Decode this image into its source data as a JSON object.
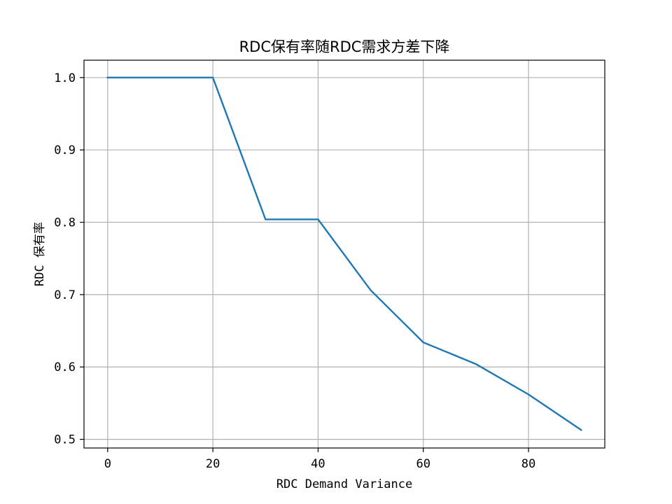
{
  "chart_data": {
    "type": "line",
    "title": "RDC保有率随RDC需求方差下降",
    "xlabel": "RDC Demand Variance",
    "ylabel": "RDC 保有率",
    "xlim": [
      -4.5,
      94.5
    ],
    "ylim": [
      0.488,
      1.024
    ],
    "xticks": [
      0,
      20,
      40,
      60,
      80
    ],
    "yticks": [
      0.5,
      0.6,
      0.7,
      0.8,
      0.9,
      1.0
    ],
    "xtick_labels": [
      "0",
      "20",
      "40",
      "60",
      "80"
    ],
    "ytick_labels": [
      "0.5",
      "0.6",
      "0.7",
      "0.8",
      "0.9",
      "1.0"
    ],
    "grid": true,
    "series": [
      {
        "color": "#1f77b4",
        "x": [
          0,
          10,
          20,
          30,
          40,
          50,
          60,
          70,
          80,
          90
        ],
        "values": [
          1.0,
          1.0,
          1.0,
          0.804,
          0.804,
          0.706,
          0.634,
          0.604,
          0.562,
          0.513
        ]
      }
    ]
  }
}
